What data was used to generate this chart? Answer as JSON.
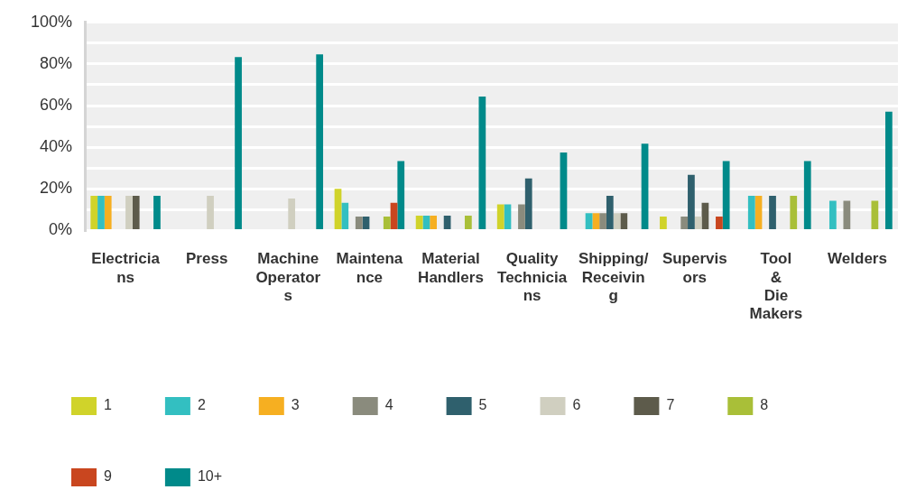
{
  "chart_data": {
    "type": "bar",
    "categories": [
      "Electricians",
      "Press",
      "Machine Operators",
      "Maintenance",
      "Material Handlers",
      "Quality Technicians",
      "Shipping/Receiving",
      "Supervisors",
      "Tool & Die Makers",
      "Welders"
    ],
    "series": [
      {
        "name": "1",
        "color": "#d0d32a",
        "values": [
          16.7,
          null,
          null,
          20,
          7.1,
          12.5,
          null,
          6.7,
          null,
          null
        ]
      },
      {
        "name": "2",
        "color": "#33bfc1",
        "values": [
          16.7,
          null,
          null,
          13.3,
          7.1,
          12.5,
          8.3,
          null,
          16.7,
          14.3
        ]
      },
      {
        "name": "3",
        "color": "#f6af21",
        "values": [
          16.7,
          null,
          null,
          null,
          7.1,
          null,
          8.3,
          null,
          16.7,
          null
        ]
      },
      {
        "name": "4",
        "color": "#8a8b7d",
        "values": [
          null,
          null,
          null,
          6.7,
          null,
          12.5,
          8.3,
          6.7,
          null,
          14.3
        ]
      },
      {
        "name": "5",
        "color": "#2f606d",
        "values": [
          null,
          null,
          null,
          6.7,
          7.1,
          25,
          16.7,
          26.7,
          16.7,
          null
        ]
      },
      {
        "name": "6",
        "color": "#d0cfc0",
        "values": [
          16.7,
          16.7,
          15.4,
          null,
          null,
          null,
          8.3,
          6.7,
          null,
          null
        ]
      },
      {
        "name": "7",
        "color": "#5d5b4b",
        "values": [
          16.7,
          null,
          null,
          null,
          null,
          null,
          8.3,
          13.3,
          null,
          null
        ]
      },
      {
        "name": "8",
        "color": "#a9bf38",
        "values": [
          null,
          null,
          null,
          6.7,
          7.1,
          null,
          null,
          null,
          16.7,
          14.3
        ]
      },
      {
        "name": "9",
        "color": "#c9461f",
        "values": [
          null,
          null,
          null,
          13.3,
          null,
          null,
          null,
          6.7,
          null,
          null
        ]
      },
      {
        "name": "10+",
        "color": "#008a8a",
        "values": [
          16.7,
          83.3,
          84.6,
          33.3,
          64.3,
          37.5,
          41.7,
          33.3,
          33.3,
          57.1
        ]
      }
    ],
    "ylim": [
      0,
      100
    ],
    "yticks": [
      {
        "value": 0,
        "label": "0%"
      },
      {
        "value": 10,
        "label": null
      },
      {
        "value": 20,
        "label": "20%"
      },
      {
        "value": 30,
        "label": null
      },
      {
        "value": 40,
        "label": "40%"
      },
      {
        "value": 50,
        "label": null
      },
      {
        "value": 60,
        "label": "60%"
      },
      {
        "value": 70,
        "label": null
      },
      {
        "value": 80,
        "label": "80%"
      },
      {
        "value": 90,
        "label": null
      },
      {
        "value": 100,
        "label": "100%"
      }
    ],
    "grid": "y",
    "legend": "bottom"
  }
}
